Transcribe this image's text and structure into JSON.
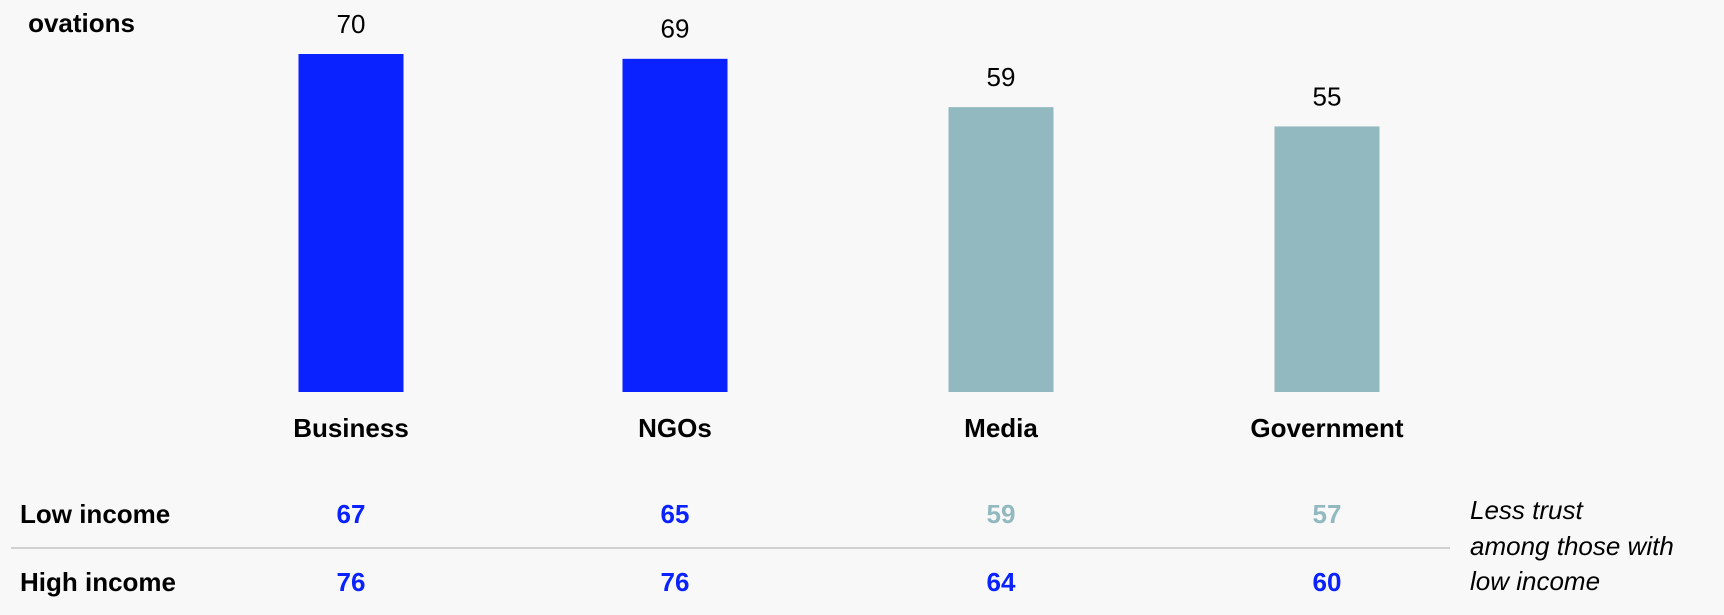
{
  "chart_data": {
    "type": "bar",
    "title": "ovations",
    "categories": [
      "Business",
      "NGOs",
      "Media",
      "Government"
    ],
    "values": [
      70,
      69,
      59,
      55
    ],
    "colors": [
      "#0a22ff",
      "#0a22ff",
      "#93b9c0",
      "#93b9c0"
    ],
    "ylim": [
      0,
      70
    ]
  },
  "table": {
    "rows": [
      {
        "label": "Low income",
        "values": [
          67,
          65,
          59,
          57
        ],
        "colors": [
          "#0a22ff",
          "#0a22ff",
          "#93b9c0",
          "#93b9c0"
        ]
      },
      {
        "label": "High income",
        "values": [
          76,
          76,
          64,
          60
        ],
        "colors": [
          "#0a22ff",
          "#0a22ff",
          "#0a22ff",
          "#0a22ff"
        ]
      }
    ]
  },
  "annotation": [
    "Less trust",
    "among those with",
    "low income"
  ]
}
